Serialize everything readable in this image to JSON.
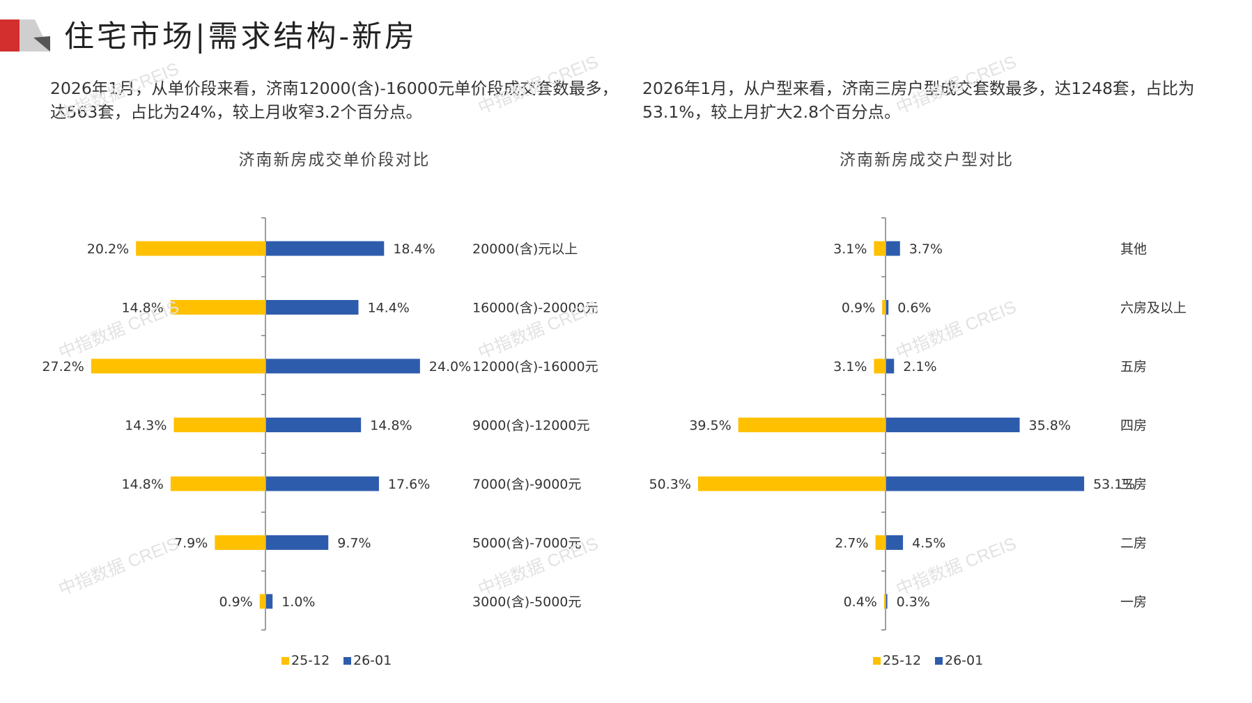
{
  "header": {
    "title": "住宅市场|需求结构-新房",
    "colors": {
      "red": "#d32f2f",
      "grey": "#bdbdbd",
      "dark": "#555555"
    }
  },
  "intro_left": "2026年1月，从单价段来看，济南12000(含)-16000元单价段成交套数最多，达563套，占比为24%，较上月收窄3.2个百分点。",
  "intro_right": "2026年1月，从户型来看，济南三房户型成交套数最多，达1248套，占比为53.1%，较上月扩大2.8个百分点。",
  "watermark_text": "中指数据 CREIS",
  "colors": {
    "series_prev": "#FFC000",
    "series_curr": "#2E5CAC",
    "axis": "#7f7f7f"
  },
  "chart_data": [
    {
      "type": "bar",
      "orientation": "horizontal-butterfly",
      "title": "济南新房成交单价段对比",
      "categories": [
        "20000(含)元以上",
        "16000(含)-20000元",
        "12000(含)-16000元",
        "9000(含)-12000元",
        "7000(含)-9000元",
        "5000(含)-7000元",
        "3000(含)-5000元"
      ],
      "series": [
        {
          "name": "25-12",
          "values": [
            20.2,
            14.8,
            27.2,
            14.3,
            14.8,
            7.9,
            0.9
          ],
          "labels": [
            "20.2%",
            "14.8%",
            "27.2%",
            "14.3%",
            "14.8%",
            "7.9%",
            "0.9%"
          ]
        },
        {
          "name": "26-01",
          "values": [
            18.4,
            14.4,
            24.0,
            14.8,
            17.6,
            9.7,
            1.0
          ],
          "labels": [
            "18.4%",
            "14.4%",
            "24.0%",
            "14.8%",
            "17.6%",
            "9.7%",
            "1.0%"
          ]
        }
      ],
      "unit": "%",
      "legend_position": "bottom"
    },
    {
      "type": "bar",
      "orientation": "horizontal-butterfly",
      "title": "济南新房成交户型对比",
      "categories": [
        "其他",
        "六房及以上",
        "五房",
        "四房",
        "三房",
        "二房",
        "一房"
      ],
      "series": [
        {
          "name": "25-12",
          "values": [
            3.1,
            0.9,
            3.1,
            39.5,
            50.3,
            2.7,
            0.4
          ],
          "labels": [
            "3.1%",
            "0.9%",
            "3.1%",
            "39.5%",
            "50.3%",
            "2.7%",
            "0.4%"
          ]
        },
        {
          "name": "26-01",
          "values": [
            3.7,
            0.6,
            2.1,
            35.8,
            53.1,
            4.5,
            0.3
          ],
          "labels": [
            "3.7%",
            "0.6%",
            "2.1%",
            "35.8%",
            "53.1%",
            "4.5%",
            "0.3%"
          ]
        }
      ],
      "unit": "%",
      "legend_position": "bottom"
    }
  ]
}
